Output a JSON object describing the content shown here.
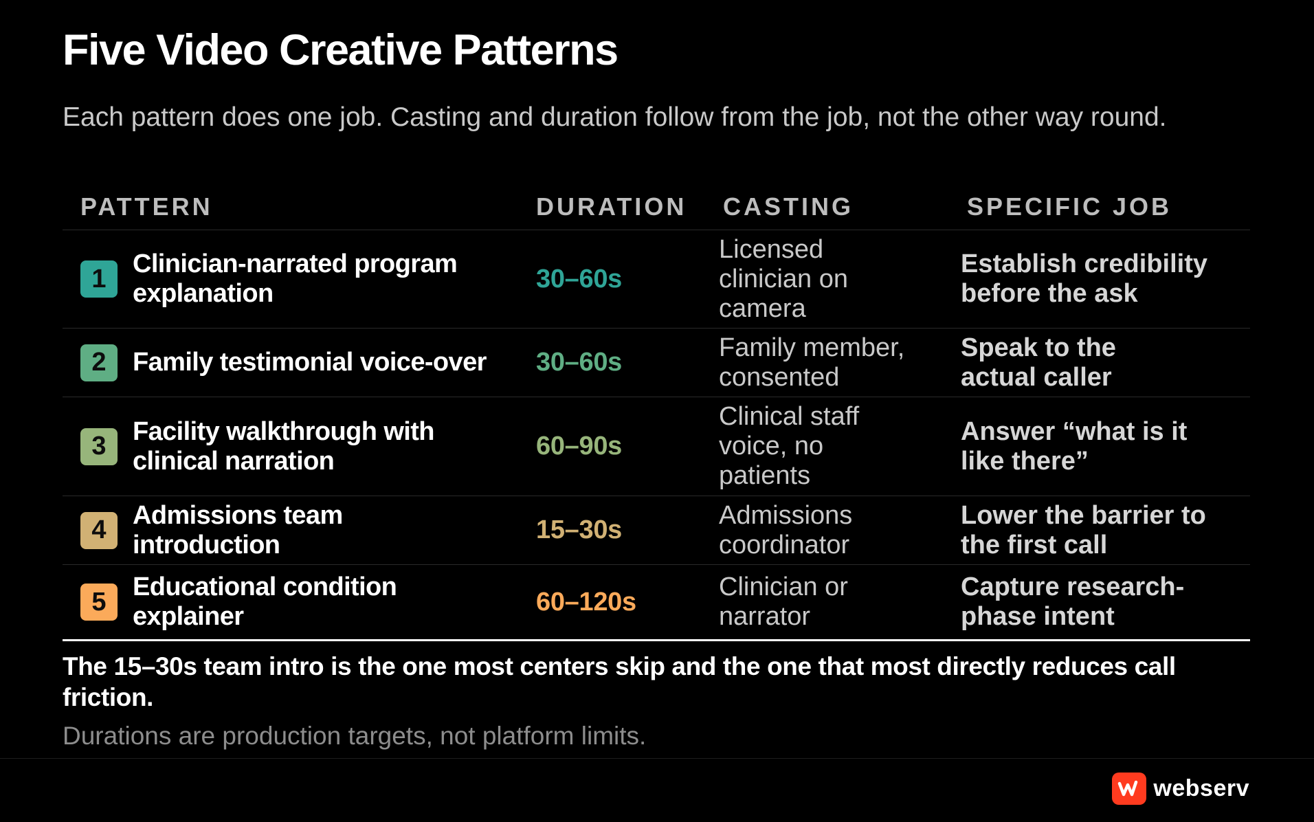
{
  "title": "Five Video Creative Patterns",
  "subtitle": "Each pattern does one job. Casting and duration follow from the job, not the other way round.",
  "headers": {
    "pattern": "PATTERN",
    "duration": "DURATION",
    "casting": "CASTING",
    "job": "SPECIFIC JOB"
  },
  "rows": [
    {
      "num": "1",
      "pattern": "Clinician-narrated program explanation",
      "duration": "30–60s",
      "casting": "Licensed clinician on camera",
      "job": "Establish credibility before the ask",
      "color": "#2fa597"
    },
    {
      "num": "2",
      "pattern": "Family testimonial voice-over",
      "duration": "30–60s",
      "casting": "Family member, consented",
      "job": "Speak to the actual caller",
      "color": "#5fae84"
    },
    {
      "num": "3",
      "pattern": "Facility walkthrough with clinical narration",
      "duration": "60–90s",
      "casting": "Clinical staff voice, no patients",
      "job": "Answer “what is it like there”",
      "color": "#97b57b"
    },
    {
      "num": "4",
      "pattern": "Admissions team introduction",
      "duration": "15–30s",
      "casting": "Admissions coordinator",
      "job": "Lower the barrier to the first call",
      "color": "#d1b174"
    },
    {
      "num": "5",
      "pattern": "Educational condition explainer",
      "duration": "60–120s",
      "casting": "Clinician or narrator",
      "job": "Capture research-phase intent",
      "color": "#fbaa5a"
    }
  ],
  "callout": "The 15–30s team intro is the one most centers skip and the one that most directly reduces call friction.",
  "note": "Durations are production targets, not platform limits.",
  "brand": {
    "name": "webserv",
    "logo_color": "#ff3b1f",
    "icon": "webserv-logo-icon"
  }
}
